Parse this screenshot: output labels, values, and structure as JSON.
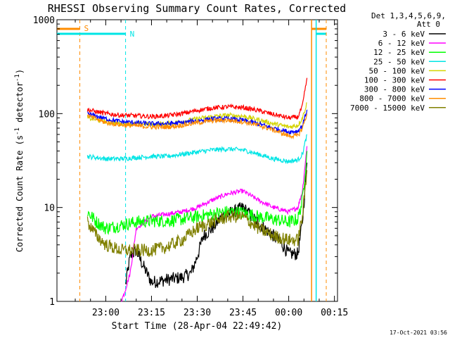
{
  "chart_data": {
    "type": "line",
    "title": "RHESSI Observing Summary Count Rates, Corrected",
    "xlabel": "Start Time (28-Apr-04 22:49:42)",
    "ylabel_main": "Corrected Count Rate (s",
    "ylabel_sup1": "-1",
    "ylabel_mid": " detector",
    "ylabel_sup2": "-1",
    "ylabel_end": ")",
    "yscale": "log",
    "ylim": [
      1,
      1000
    ],
    "xlim_minutes": [
      -16,
      76
    ],
    "x_unit": "minutes after 23:00",
    "x_ticks": [
      {
        "label": "23:00",
        "m": 0
      },
      {
        "label": "23:15",
        "m": 15
      },
      {
        "label": "23:30",
        "m": 30
      },
      {
        "label": "23:45",
        "m": 45
      },
      {
        "label": "00:00",
        "m": 60
      },
      {
        "label": "00:15",
        "m": 75
      }
    ],
    "y_ticks": [
      {
        "label": "1",
        "v": 1
      },
      {
        "label": "10",
        "v": 10
      },
      {
        "label": "100",
        "v": 100
      },
      {
        "label": "1000",
        "v": 1000
      }
    ],
    "legend": {
      "header1": "Det 1,3,4,5,6,9,",
      "header2": "Att 0",
      "placement": "right"
    },
    "markers": [
      {
        "label": "S",
        "m": -8.5,
        "color": "#ff8c00"
      },
      {
        "label": "N",
        "m": 6.5,
        "color": "#00e5e5"
      }
    ],
    "series": [
      {
        "name": "3 - 6 keV",
        "color": "#000000",
        "points": [
          [
            6.5,
            1.5
          ],
          [
            8,
            3
          ],
          [
            10,
            3.5
          ],
          [
            12,
            2.5
          ],
          [
            15,
            1.6
          ],
          [
            20,
            1.7
          ],
          [
            25,
            1.8
          ],
          [
            28,
            2
          ],
          [
            30,
            3
          ],
          [
            32,
            5
          ],
          [
            35,
            6
          ],
          [
            38,
            8
          ],
          [
            42,
            9
          ],
          [
            45,
            10
          ],
          [
            48,
            8
          ],
          [
            52,
            6
          ],
          [
            55,
            5
          ],
          [
            58,
            4
          ],
          [
            60,
            3.2
          ],
          [
            63,
            3.2
          ],
          [
            64.5,
            7
          ],
          [
            66,
            30
          ]
        ]
      },
      {
        "name": "6 - 12 keV",
        "color": "#ff00ff",
        "points": [
          [
            5,
            1
          ],
          [
            6,
            1.2
          ],
          [
            8,
            2
          ],
          [
            10,
            6
          ],
          [
            15,
            8
          ],
          [
            20,
            8.5
          ],
          [
            25,
            9
          ],
          [
            30,
            10
          ],
          [
            35,
            12
          ],
          [
            40,
            14
          ],
          [
            45,
            15
          ],
          [
            50,
            12
          ],
          [
            55,
            10
          ],
          [
            60,
            9
          ],
          [
            63,
            10
          ],
          [
            64.5,
            15
          ],
          [
            66,
            45
          ]
        ]
      },
      {
        "name": "12 - 25 keV",
        "color": "#00ff00",
        "points": [
          [
            -6,
            9
          ],
          [
            -3,
            7
          ],
          [
            0,
            6
          ],
          [
            5,
            6.5
          ],
          [
            10,
            7
          ],
          [
            15,
            7.2
          ],
          [
            20,
            7.2
          ],
          [
            25,
            7.5
          ],
          [
            30,
            8
          ],
          [
            35,
            8.5
          ],
          [
            40,
            9
          ],
          [
            45,
            8.8
          ],
          [
            50,
            8
          ],
          [
            55,
            7.5
          ],
          [
            60,
            7
          ],
          [
            63,
            7.5
          ],
          [
            64.5,
            12
          ],
          [
            66,
            40
          ]
        ]
      },
      {
        "name": "25 - 50 keV",
        "color": "#00e5e5",
        "points": [
          [
            -6,
            35
          ],
          [
            0,
            33
          ],
          [
            5,
            33
          ],
          [
            10,
            34
          ],
          [
            15,
            35
          ],
          [
            20,
            35
          ],
          [
            25,
            37
          ],
          [
            30,
            39
          ],
          [
            35,
            41
          ],
          [
            40,
            42
          ],
          [
            45,
            41
          ],
          [
            50,
            37
          ],
          [
            55,
            33
          ],
          [
            60,
            31
          ],
          [
            63,
            32
          ],
          [
            64.5,
            37
          ],
          [
            66,
            60
          ]
        ]
      },
      {
        "name": "50 - 100 keV",
        "color": "#d4d400",
        "points": [
          [
            -6,
            90
          ],
          [
            0,
            82
          ],
          [
            5,
            78
          ],
          [
            10,
            78
          ],
          [
            15,
            77
          ],
          [
            20,
            78
          ],
          [
            25,
            82
          ],
          [
            30,
            88
          ],
          [
            35,
            93
          ],
          [
            40,
            96
          ],
          [
            45,
            94
          ],
          [
            50,
            86
          ],
          [
            55,
            78
          ],
          [
            60,
            72
          ],
          [
            63,
            75
          ],
          [
            64.5,
            90
          ],
          [
            66,
            130
          ]
        ]
      },
      {
        "name": "100 - 300 keV",
        "color": "#ff0000",
        "points": [
          [
            -6,
            110
          ],
          [
            0,
            100
          ],
          [
            5,
            96
          ],
          [
            10,
            95
          ],
          [
            15,
            93
          ],
          [
            20,
            95
          ],
          [
            25,
            100
          ],
          [
            30,
            108
          ],
          [
            35,
            115
          ],
          [
            40,
            118
          ],
          [
            45,
            116
          ],
          [
            50,
            108
          ],
          [
            55,
            98
          ],
          [
            60,
            90
          ],
          [
            63,
            92
          ],
          [
            64.5,
            120
          ],
          [
            66,
            240
          ]
        ]
      },
      {
        "name": "300 - 800 keV",
        "color": "#0000ff",
        "points": [
          [
            -6,
            100
          ],
          [
            0,
            88
          ],
          [
            5,
            82
          ],
          [
            10,
            80
          ],
          [
            15,
            78
          ],
          [
            20,
            78
          ],
          [
            25,
            80
          ],
          [
            30,
            84
          ],
          [
            35,
            88
          ],
          [
            40,
            88
          ],
          [
            45,
            85
          ],
          [
            50,
            78
          ],
          [
            55,
            70
          ],
          [
            60,
            64
          ],
          [
            63,
            65
          ],
          [
            64.5,
            75
          ],
          [
            66,
            110
          ]
        ]
      },
      {
        "name": "800 - 7000 keV",
        "color": "#ff8c00",
        "points": [
          [
            -6,
            95
          ],
          [
            0,
            80
          ],
          [
            5,
            76
          ],
          [
            10,
            74
          ],
          [
            15,
            72
          ],
          [
            20,
            72
          ],
          [
            25,
            75
          ],
          [
            30,
            80
          ],
          [
            35,
            84
          ],
          [
            40,
            85
          ],
          [
            45,
            82
          ],
          [
            50,
            75
          ],
          [
            55,
            67
          ],
          [
            60,
            58
          ],
          [
            63,
            58
          ],
          [
            64.5,
            70
          ],
          [
            66,
            100
          ]
        ]
      },
      {
        "name": "7000 - 15000 keV",
        "color": "#808000",
        "points": [
          [
            -6,
            7
          ],
          [
            -3,
            5
          ],
          [
            0,
            4
          ],
          [
            5,
            3.5
          ],
          [
            10,
            3.5
          ],
          [
            15,
            3.5
          ],
          [
            20,
            3.8
          ],
          [
            25,
            4.5
          ],
          [
            30,
            6
          ],
          [
            35,
            7
          ],
          [
            40,
            8
          ],
          [
            45,
            8
          ],
          [
            50,
            6
          ],
          [
            55,
            5
          ],
          [
            60,
            4.5
          ],
          [
            63,
            4.5
          ],
          [
            64.5,
            8
          ],
          [
            66,
            25
          ]
        ]
      }
    ]
  },
  "footer": {
    "date": "17-Oct-2021 03:56"
  }
}
